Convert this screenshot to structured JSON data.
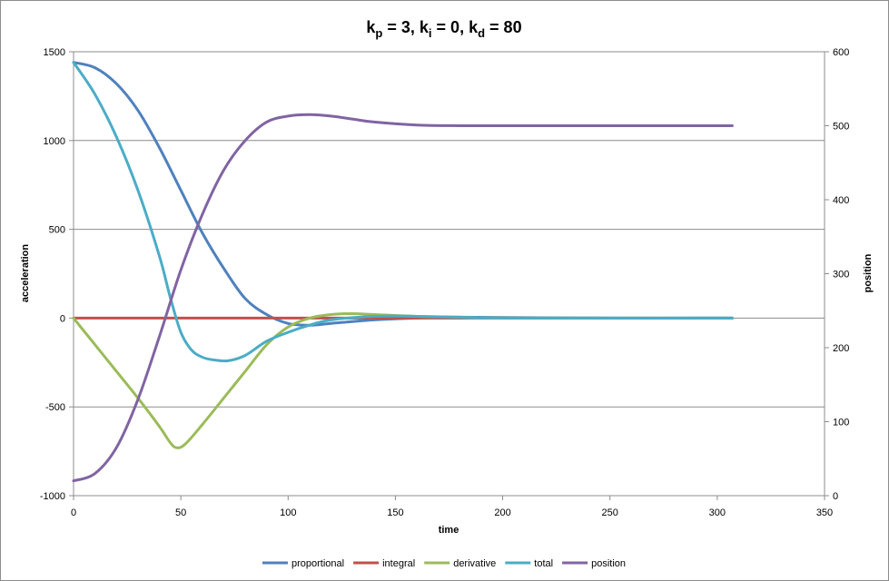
{
  "chart_data": {
    "type": "line",
    "title": {
      "base": "k",
      "parts": [
        {
          "sub": "p",
          "value": " = 3, k"
        },
        {
          "sub": "i",
          "value": " = 0, k"
        },
        {
          "sub": "d",
          "value": " = 80"
        }
      ]
    },
    "xlabel": "time",
    "ylabel": "acceleration",
    "y2label": "position",
    "xlim": [
      0,
      350
    ],
    "ylim": [
      -1000,
      1500
    ],
    "y2lim": [
      0,
      600
    ],
    "xticks": [
      0,
      50,
      100,
      150,
      200,
      250,
      300,
      350
    ],
    "yticks": [
      -1000,
      -500,
      0,
      500,
      1000,
      1500
    ],
    "y2ticks": [
      0,
      100,
      200,
      300,
      400,
      500,
      600
    ],
    "grid": "horizontal",
    "legend_position": "bottom",
    "series": [
      {
        "name": "proportional",
        "axis": "left",
        "color": "#4f81bd",
        "x": [
          0,
          10,
          20,
          30,
          40,
          50,
          60,
          70,
          80,
          90,
          100,
          110,
          120,
          140,
          160,
          180,
          200,
          250,
          307
        ],
        "y": [
          1440,
          1410,
          1320,
          1170,
          960,
          720,
          480,
          280,
          110,
          20,
          -30,
          -40,
          -30,
          -10,
          0,
          5,
          3,
          0,
          0
        ]
      },
      {
        "name": "integral",
        "axis": "left",
        "color": "#c0504d",
        "x": [
          0,
          307
        ],
        "y": [
          0,
          0
        ]
      },
      {
        "name": "derivative",
        "axis": "left",
        "color": "#9bbb59",
        "x": [
          0,
          10,
          20,
          30,
          40,
          45,
          48,
          52,
          60,
          70,
          80,
          90,
          100,
          110,
          120,
          130,
          140,
          160,
          180,
          200,
          250,
          307
        ],
        "y": [
          0,
          -150,
          -300,
          -450,
          -610,
          -700,
          -730,
          -710,
          -600,
          -450,
          -300,
          -150,
          -50,
          0,
          20,
          25,
          20,
          10,
          5,
          0,
          0,
          0
        ]
      },
      {
        "name": "total",
        "axis": "left",
        "color": "#4bacc6",
        "x": [
          0,
          10,
          20,
          30,
          40,
          45,
          50,
          55,
          60,
          65,
          72,
          80,
          90,
          100,
          110,
          120,
          140,
          160,
          180,
          200,
          250,
          307
        ],
        "y": [
          1440,
          1260,
          1020,
          720,
          350,
          120,
          -80,
          -180,
          -220,
          -235,
          -240,
          -210,
          -130,
          -80,
          -40,
          -10,
          10,
          10,
          5,
          0,
          0,
          0
        ]
      },
      {
        "name": "position",
        "axis": "right",
        "color": "#8064a2",
        "x": [
          0,
          10,
          20,
          30,
          40,
          50,
          60,
          70,
          80,
          90,
          100,
          110,
          120,
          130,
          140,
          160,
          180,
          200,
          250,
          307
        ],
        "y": [
          20,
          30,
          65,
          130,
          215,
          305,
          380,
          440,
          480,
          505,
          513,
          515,
          513,
          509,
          505,
          501,
          500,
          500,
          500,
          500
        ]
      }
    ]
  }
}
